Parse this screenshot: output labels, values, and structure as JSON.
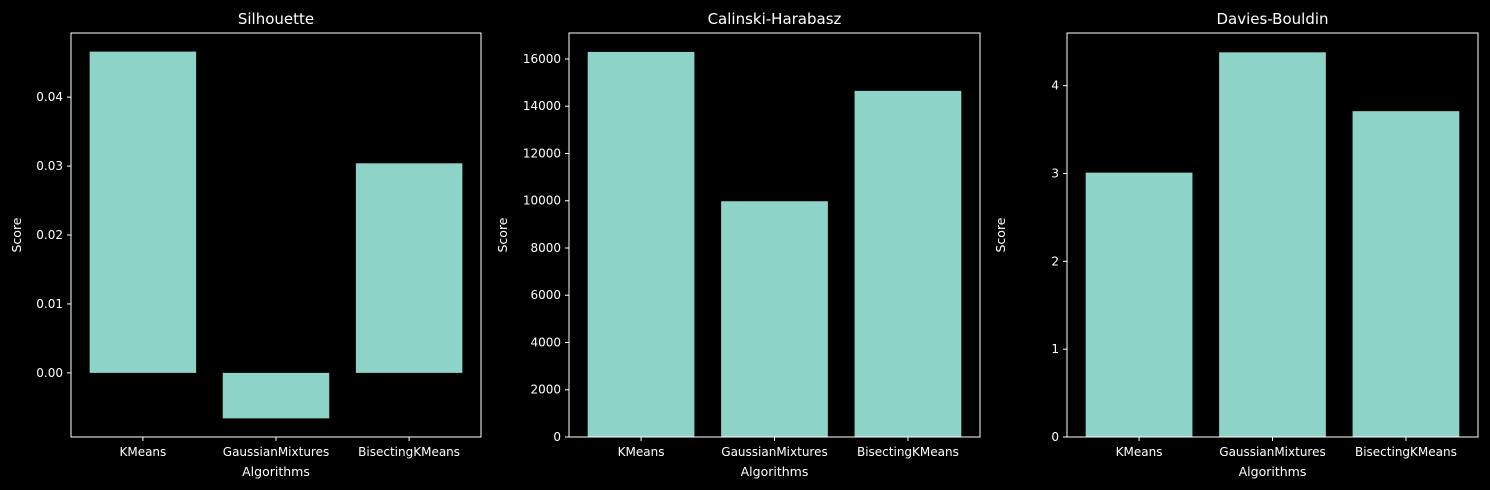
{
  "style": {
    "background": "#000000",
    "foreground": "#ffffff",
    "bar_color": "#8dd3c7"
  },
  "chart_data": [
    {
      "type": "bar",
      "title": "Silhouette",
      "xlabel": "Algorithms",
      "ylabel": "Score",
      "categories": [
        "KMeans",
        "GaussianMixtures",
        "BisectingKMeans"
      ],
      "values": [
        0.0466,
        -0.0066,
        0.0304
      ],
      "ylim": [
        -0.0093,
        0.0493
      ],
      "yticks": [
        0.0,
        0.01,
        0.02,
        0.03,
        0.04
      ],
      "ytick_labels": [
        "0.00",
        "0.01",
        "0.02",
        "0.03",
        "0.04"
      ],
      "grid": false
    },
    {
      "type": "bar",
      "title": "Calinski-Harabasz",
      "xlabel": "Algorithms",
      "ylabel": "Score",
      "categories": [
        "KMeans",
        "GaussianMixtures",
        "BisectingKMeans"
      ],
      "values": [
        16300,
        9980,
        14650
      ],
      "ylim": [
        0,
        17100
      ],
      "yticks": [
        0,
        2000,
        4000,
        6000,
        8000,
        10000,
        12000,
        14000,
        16000
      ],
      "ytick_labels": [
        "0",
        "2000",
        "4000",
        "6000",
        "8000",
        "10000",
        "12000",
        "14000",
        "16000"
      ],
      "grid": false
    },
    {
      "type": "bar",
      "title": "Davies-Bouldin",
      "xlabel": "Algorithms",
      "ylabel": "Score",
      "categories": [
        "KMeans",
        "GaussianMixtures",
        "BisectingKMeans"
      ],
      "values": [
        3.01,
        4.38,
        3.71
      ],
      "ylim": [
        0,
        4.6
      ],
      "yticks": [
        0,
        1,
        2,
        3,
        4
      ],
      "ytick_labels": [
        "0",
        "1",
        "2",
        "3",
        "4"
      ],
      "grid": false
    }
  ]
}
